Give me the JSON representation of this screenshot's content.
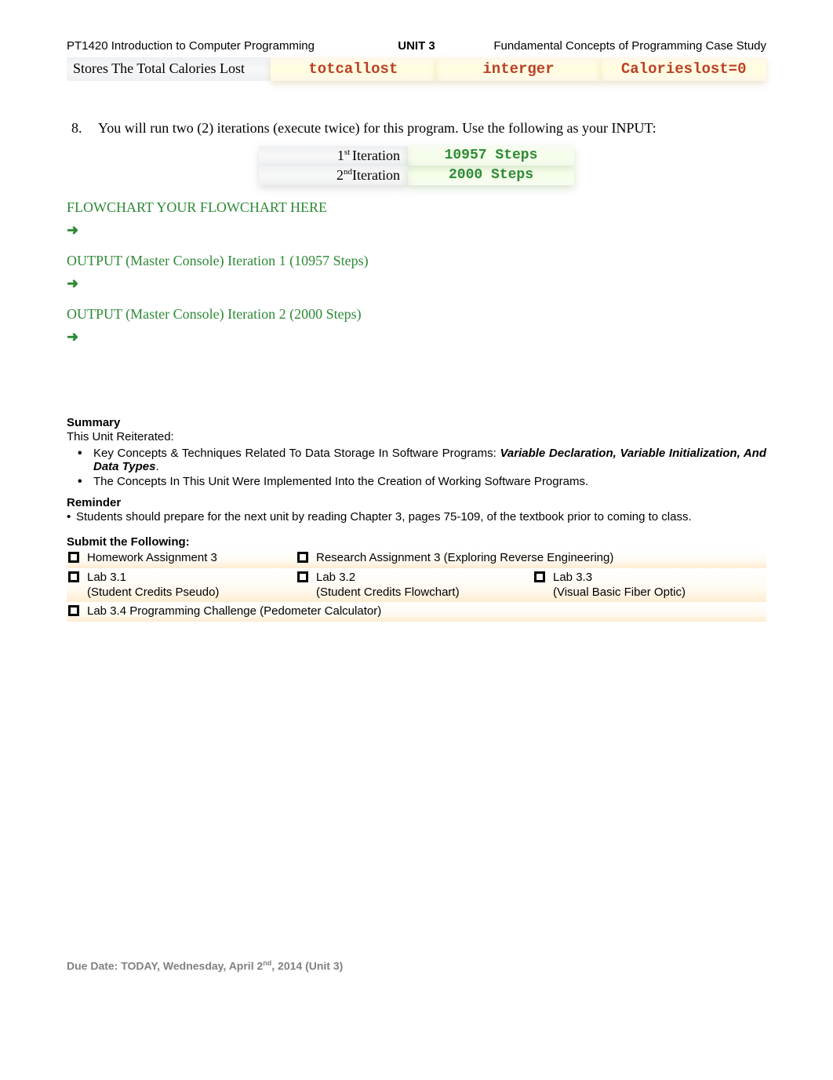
{
  "header": {
    "left": "PT1420 Introduction to Computer Programming",
    "center": "UNIT 3",
    "right": "Fundamental Concepts of Programming Case Study"
  },
  "var_row": {
    "desc": "Stores The Total Calories Lost",
    "name": "totcallost",
    "type": "interger",
    "init": "Calorieslost=0"
  },
  "instruction": {
    "number": "8.",
    "text": "You will run two (2) iterations (execute twice) for this program.  Use the following as your INPUT:"
  },
  "iterations": {
    "row1": {
      "label_pre": "1",
      "label_sup": "st ",
      "label_post": "Iteration",
      "value": "10957 Steps"
    },
    "row2": {
      "label_pre": "2",
      "label_sup": "nd",
      "label_post": "Iteration",
      "value": "2000 Steps"
    }
  },
  "flowchart_heading": "FLOWCHART YOUR FLOWCHART HERE",
  "arrow": "➜",
  "output1": "OUTPUT (Master Console) Iteration 1 (10957 Steps)",
  "output2": "OUTPUT (Master Console) Iteration 2 (2000 Steps)",
  "summary": {
    "title": "Summary",
    "subtitle": "This Unit Reiterated:",
    "b1_pre": "Key Concepts & Techniques Related To Data Storage In Software Programs: ",
    "b1_bold": "Variable Declaration, Variable Initialization, And Data Types",
    "b1_post": ".",
    "b2": "The Concepts In This Unit Were Implemented Into the Creation of Working Software Programs."
  },
  "reminder": {
    "title": "Reminder",
    "text": "Students should prepare for the next unit by reading Chapter 3, pages 75-109, of the textbook prior to coming to class."
  },
  "submit": {
    "title": "Submit the Following:",
    "r1c1": "Homework Assignment 3",
    "r1c2": "Research Assignment 3 (Exploring Reverse Engineering)",
    "r2c1_a": "Lab 3.1",
    "r2c1_b": "(Student Credits Pseudo)",
    "r2c2_a": "Lab 3.2",
    "r2c2_b": "(Student Credits Flowchart)",
    "r2c3_a": "Lab 3.3",
    "r2c3_b": "(Visual Basic Fiber Optic)",
    "r3": "Lab 3.4 Programming Challenge (Pedometer Calculator)"
  },
  "footer": {
    "pre": "Due Date: TODAY, Wednesday, April 2",
    "sup": "nd",
    "post": ", 2014 (Unit 3)"
  }
}
